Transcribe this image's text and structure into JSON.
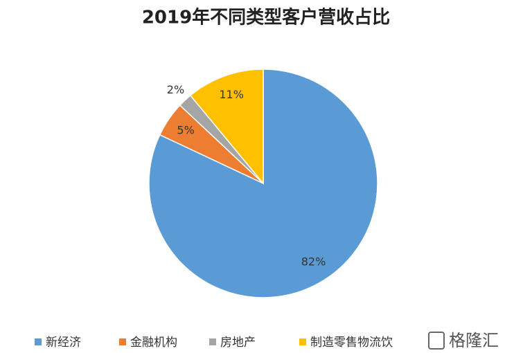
{
  "chart_data": {
    "type": "pie",
    "title": "2019年不同类型客户营收占比",
    "categories": [
      "新经济",
      "金融机构",
      "房地产",
      "制造零售物流饮"
    ],
    "values": [
      82,
      5,
      2,
      11
    ],
    "value_labels": [
      "82%",
      "5%",
      "2%",
      "11%"
    ],
    "colors": [
      "#5b9bd5",
      "#ed7d31",
      "#a5a5a5",
      "#ffc000"
    ],
    "legend": "bottom"
  },
  "watermark": "格隆汇"
}
